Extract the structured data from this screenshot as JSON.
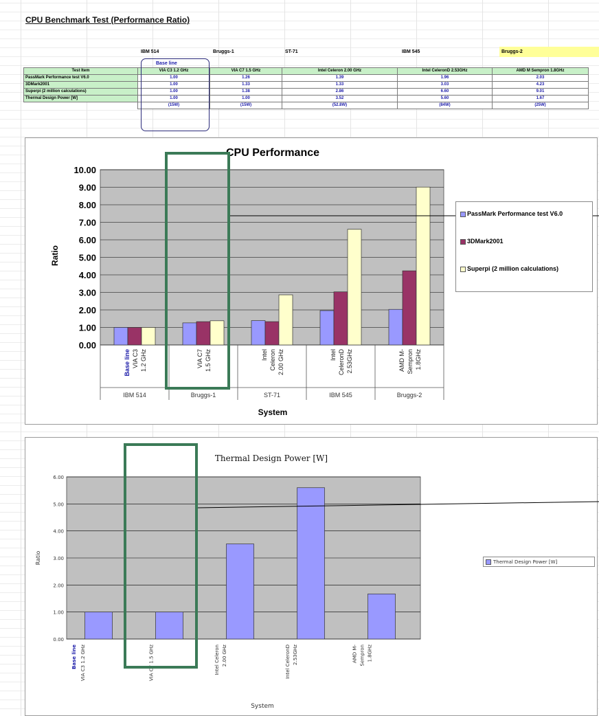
{
  "sheet": {
    "title": "CPU Benchmark Test (Performance Ratio)",
    "base_line_label": "Base line",
    "systems": [
      "IBM 514",
      "Bruggs-1",
      "ST-71",
      "IBM 545",
      "Bruggs-2"
    ],
    "table": {
      "headers": [
        "Test Item",
        "VIA C3 1.2 GHz",
        "VIA C7 1.5 GHz",
        "Intel Celeron 2.00 GHz",
        "Intel CeleronD 2.53GHz",
        "AMD M Sempron 1.8GHz"
      ],
      "rows": [
        {
          "item": "PassMark Performance test V6.0",
          "values": [
            "1.00",
            "1.26",
            "1.39",
            "1.96",
            "2.03"
          ]
        },
        {
          "item": "3DMark2001",
          "values": [
            "1.00",
            "1.33",
            "1.33",
            "3.03",
            "4.23"
          ]
        },
        {
          "item": "Superpi (2 million calculations)",
          "values": [
            "1.00",
            "1.38",
            "2.86",
            "6.60",
            "9.01"
          ]
        },
        {
          "item": "Thermal Design Power [W]",
          "values": [
            "1.00",
            "1.00",
            "3.52",
            "5.60",
            "1.67"
          ]
        },
        {
          "item": "",
          "values": [
            "(15W)",
            "(15W)",
            "(52.8W)",
            "(84W)",
            "(25W)"
          ]
        }
      ]
    }
  },
  "chart_data": [
    {
      "type": "bar",
      "title": "CPU Performance",
      "xlabel": "System",
      "ylabel": "Ratio",
      "ylim": [
        0,
        10
      ],
      "yticks": [
        "0.00",
        "1.00",
        "2.00",
        "3.00",
        "4.00",
        "5.00",
        "6.00",
        "7.00",
        "8.00",
        "9.00",
        "10.00"
      ],
      "categories": [
        {
          "lines": [
            "Base line",
            "VIA C3",
            "1.2 GHz"
          ],
          "system": "IBM 514"
        },
        {
          "lines": [
            "VIA C7",
            "1.5 GHz"
          ],
          "system": "Bruggs-1"
        },
        {
          "lines": [
            "Intel",
            "Celeron",
            "2.00 GHz"
          ],
          "system": "ST-71"
        },
        {
          "lines": [
            "Intel",
            "CeleronD",
            "2.53GHz"
          ],
          "system": "IBM 545"
        },
        {
          "lines": [
            "AMD M-",
            "Sempron",
            "1.8GHz"
          ],
          "system": "Bruggs-2"
        }
      ],
      "series": [
        {
          "name": "PassMark Performance test V6.0",
          "color": "#9999ff",
          "values": [
            1.0,
            1.26,
            1.39,
            1.96,
            2.03
          ]
        },
        {
          "name": "3DMark2001",
          "color": "#993366",
          "values": [
            1.0,
            1.33,
            1.33,
            3.03,
            4.23
          ]
        },
        {
          "name": "Superpi (2 million calculations)",
          "color": "#ffffcc",
          "values": [
            1.0,
            1.38,
            2.86,
            6.6,
            9.01
          ]
        }
      ],
      "legend": "right",
      "grid": true
    },
    {
      "type": "bar",
      "title": "Thermal Design Power [W]",
      "xlabel": "System",
      "ylabel": "Ratio",
      "ylim": [
        0,
        6
      ],
      "yticks": [
        "0.00",
        "1.00",
        "2.00",
        "3.00",
        "4.00",
        "5.00",
        "6.00"
      ],
      "categories": [
        {
          "lines": [
            "Base line",
            "VIA C3 1.2 GHz"
          ]
        },
        {
          "lines": [
            "VIA C7 1.5 GHz"
          ]
        },
        {
          "lines": [
            "Intel Celeron",
            "2.00 GHz"
          ]
        },
        {
          "lines": [
            "Intel CeleronD",
            "2.53GHz"
          ]
        },
        {
          "lines": [
            "AMD M-",
            "Sempron",
            "1.8GHz"
          ]
        }
      ],
      "series": [
        {
          "name": "Thermal Design Power [W]",
          "color": "#9999ff",
          "values": [
            1.0,
            1.0,
            3.52,
            5.6,
            1.67
          ]
        }
      ],
      "legend": "right",
      "grid": true
    }
  ],
  "colors": {
    "plot_background": "#c0c0c0",
    "highlight_box": "#3b7a57",
    "table_header": "#c8f0c8",
    "table_value": "#1a1aa8",
    "system_highlight": "#ffff99"
  }
}
